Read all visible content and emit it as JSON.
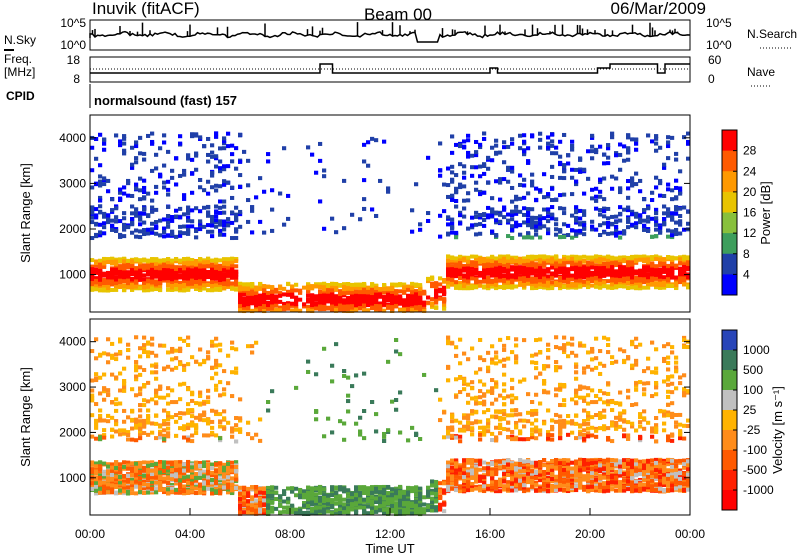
{
  "header": {
    "title_left": "Inuvik (fitACF)",
    "title_center": "Beam 00",
    "title_right": "06/Mar/2009"
  },
  "top_panels": {
    "nsky_label": "N.Sky",
    "nsky_ticks": [
      "10^5",
      "10^0"
    ],
    "nsearch_label": "N.Search",
    "freq_label": "Freq.",
    "freq_unit": "[MHz]",
    "freq_ticks": [
      "18",
      "8"
    ],
    "nave_ticks": [
      "60",
      "0"
    ],
    "nave_label": "Nave",
    "cpid_label": "CPID",
    "cpid_text": "normalsound (fast) 157"
  },
  "chart_data": [
    {
      "type": "heatmap",
      "name": "power",
      "ylabel": "Slant Range [km]",
      "yticks": [
        "4000",
        "3000",
        "2000",
        "1000"
      ],
      "ylim": [
        180,
        4500
      ],
      "colorbar": {
        "label": "Power [dB]",
        "ticks": [
          "28",
          "24",
          "20",
          "16",
          "12",
          "8",
          "4"
        ],
        "colors": [
          "#ff0000",
          "#ff5a00",
          "#ff9900",
          "#e8c400",
          "#88c03c",
          "#3d9e5c",
          "#2040a8",
          "#0000ff"
        ]
      }
    },
    {
      "type": "heatmap",
      "name": "velocity",
      "ylabel": "Slant Range [km]",
      "yticks": [
        "4000",
        "3000",
        "2000",
        "1000"
      ],
      "ylim": [
        180,
        4500
      ],
      "colorbar": {
        "label": "Velocity [m s⁻¹]",
        "ticks": [
          "1000",
          "500",
          "100",
          "25",
          "-25",
          "-100",
          "-500",
          "-1000"
        ],
        "colors": [
          "#2845b8",
          "#3a7a5a",
          "#5aa83a",
          "#c0c0c0",
          "#ffb300",
          "#ff8c1a",
          "#ff5a00",
          "#ff2000",
          "#ff0000"
        ]
      }
    }
  ],
  "time_axis": {
    "ticks": [
      "00:00",
      "04:00",
      "08:00",
      "12:00",
      "16:00",
      "20:00",
      "00:00"
    ],
    "xlabel": "Time UT"
  }
}
